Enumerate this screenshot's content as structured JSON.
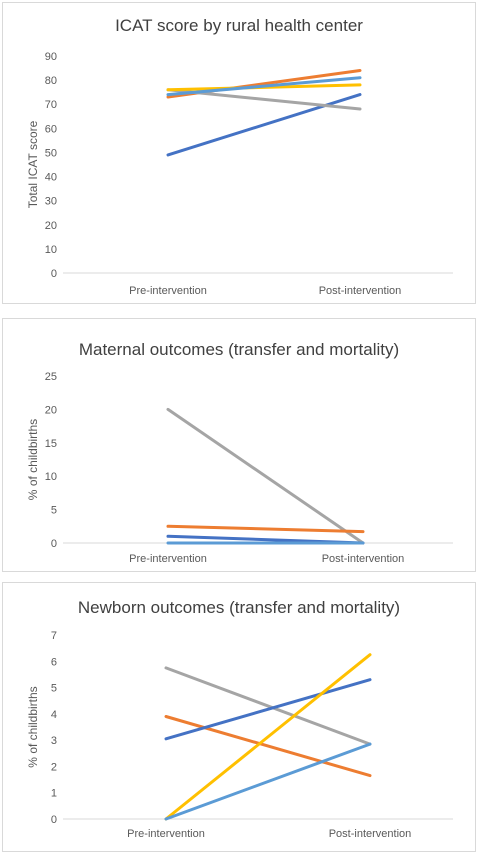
{
  "chart_data": [
    {
      "type": "line",
      "title": "ICAT score by rural health center",
      "xlabel": "",
      "ylabel": "Total ICAT score",
      "categories": [
        "Pre-intervention",
        "Post-intervention"
      ],
      "ylim": [
        0,
        90
      ],
      "yticks": [
        0,
        10,
        20,
        30,
        40,
        50,
        60,
        70,
        80,
        90
      ],
      "grid": false,
      "legend": "none",
      "series": [
        {
          "color": "#4472C4",
          "values": [
            49,
            74
          ]
        },
        {
          "color": "#ED7D31",
          "values": [
            73,
            84
          ]
        },
        {
          "color": "#A5A5A5",
          "values": [
            76,
            68
          ]
        },
        {
          "color": "#FFC000",
          "values": [
            76,
            78
          ]
        },
        {
          "color": "#5B9BD5",
          "values": [
            74,
            81
          ]
        }
      ]
    },
    {
      "type": "line",
      "title": "Maternal outcomes (transfer and mortality)",
      "xlabel": "",
      "ylabel": "% of childbirths",
      "categories": [
        "Pre-intervention",
        "Post-intervention"
      ],
      "ylim": [
        0,
        25
      ],
      "yticks": [
        0,
        5,
        10,
        15,
        20,
        25
      ],
      "grid": false,
      "legend": "none",
      "series": [
        {
          "color": "#A5A5A5",
          "values": [
            20,
            0
          ]
        },
        {
          "color": "#ED7D31",
          "values": [
            2.5,
            1.7
          ]
        },
        {
          "color": "#4472C4",
          "values": [
            1.0,
            0
          ]
        },
        {
          "color": "#5B9BD5",
          "values": [
            0,
            0
          ]
        }
      ]
    },
    {
      "type": "line",
      "title": "Newborn outcomes (transfer and mortality)",
      "xlabel": "",
      "ylabel": "% of childbirths",
      "categories": [
        "Pre-intervention",
        "Post-intervention"
      ],
      "ylim": [
        0,
        7
      ],
      "yticks": [
        0,
        1,
        2,
        3,
        4,
        5,
        6,
        7
      ],
      "grid": false,
      "legend": "none",
      "series": [
        {
          "color": "#A5A5A5",
          "values": [
            5.75,
            2.85
          ]
        },
        {
          "color": "#ED7D31",
          "values": [
            3.9,
            1.65
          ]
        },
        {
          "color": "#4472C4",
          "values": [
            3.05,
            5.3
          ]
        },
        {
          "color": "#FFC000",
          "values": [
            0,
            6.25
          ]
        },
        {
          "color": "#5B9BD5",
          "values": [
            0,
            2.85
          ]
        }
      ]
    }
  ]
}
